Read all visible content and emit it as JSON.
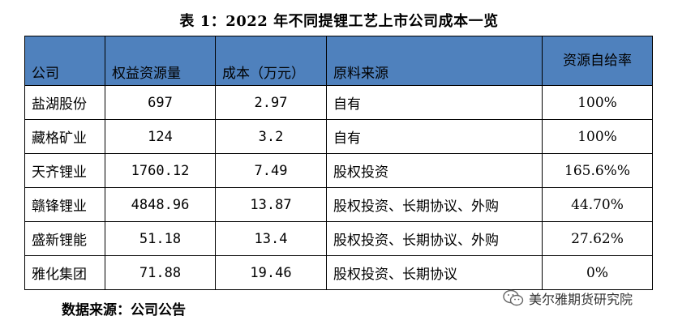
{
  "title": "表 1：2022 年不同提锂工艺上市公司成本一览",
  "table": {
    "headers": [
      "公司",
      "权益资源量",
      "成本（万元）",
      "原料来源",
      "资源自给率"
    ],
    "rows": [
      [
        "盐湖股份",
        "697",
        "2.97",
        "自有",
        "100%"
      ],
      [
        "藏格矿业",
        "124",
        "3.2",
        "自有",
        "100%"
      ],
      [
        "天齐锂业",
        "1760.12",
        "7.49",
        "股权投资",
        "165.6%%"
      ],
      [
        "赣锋锂业",
        "4848.96",
        "13.87",
        "股权投资、长期协议、外购",
        "44.70%"
      ],
      [
        "盛新锂能",
        "51.18",
        "13.4",
        "股权投资、长期协议、外购",
        "27.62%"
      ],
      [
        "雅化集团",
        "71.88",
        "19.46",
        "股权投资、长期协议",
        "0%"
      ]
    ]
  },
  "source": "数据来源：公司公告",
  "watermark": {
    "text": "美尔雅期货研究院",
    "icon": "wechat-icon"
  }
}
